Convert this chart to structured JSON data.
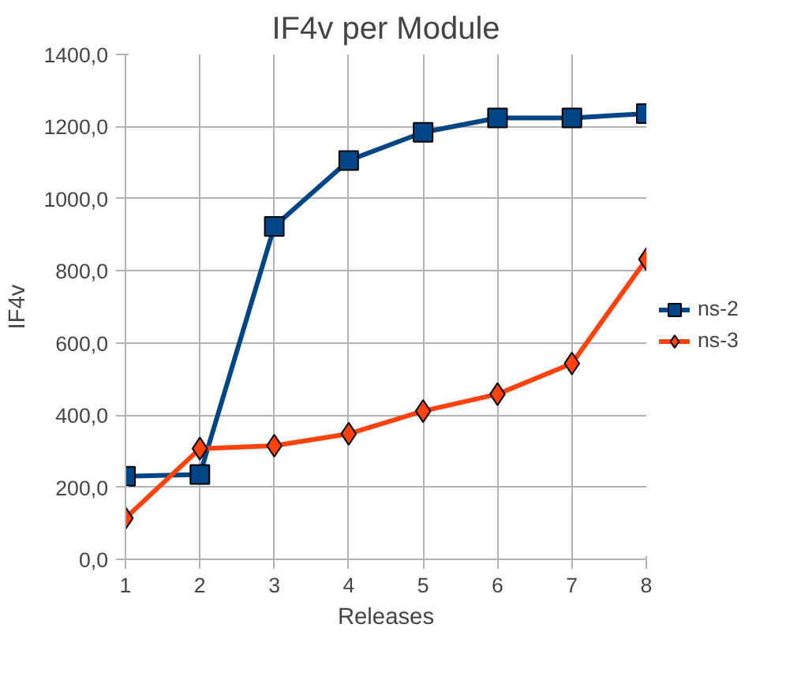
{
  "chart_data": {
    "type": "line",
    "title": "IF4v per Module",
    "xlabel": "Releases",
    "ylabel": "IF4v",
    "x": [
      1,
      2,
      3,
      4,
      5,
      6,
      7,
      8
    ],
    "series": [
      {
        "name": "ns-2",
        "color": "#004586",
        "marker": "square",
        "values": [
          230,
          235,
          923,
          1106,
          1184,
          1224,
          1224,
          1236
        ]
      },
      {
        "name": "ns-3",
        "color": "#ff420e",
        "marker": "diamond",
        "values": [
          114,
          307,
          315,
          348,
          411,
          458,
          543,
          832
        ]
      }
    ],
    "xlim": [
      1,
      8
    ],
    "xticks": [
      1,
      2,
      3,
      4,
      5,
      6,
      7,
      8
    ],
    "ylim": [
      0,
      1400
    ],
    "yticks": [
      {
        "value": 0,
        "label": "0,0"
      },
      {
        "value": 200,
        "label": "200,0"
      },
      {
        "value": 400,
        "label": "400,0"
      },
      {
        "value": 600,
        "label": "600,0"
      },
      {
        "value": 800,
        "label": "800,0"
      },
      {
        "value": 1000,
        "label": "1000,0"
      },
      {
        "value": 1200,
        "label": "1200,0"
      },
      {
        "value": 1400,
        "label": "1400,0"
      }
    ],
    "grid": true,
    "legend": "right",
    "line_style": "solid"
  }
}
